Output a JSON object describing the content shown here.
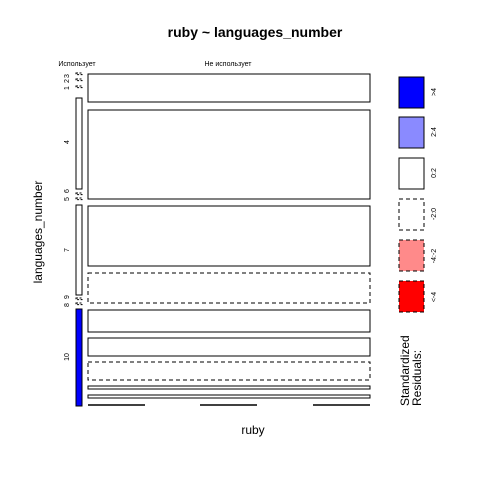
{
  "chart_data": {
    "type": "mosaic",
    "title": "ruby ~ languages_number",
    "xlabel": "ruby",
    "ylabel": "languages_number",
    "column_labels": [
      "Использует",
      "Не использует"
    ],
    "row_labels": [
      "1",
      "2",
      "3",
      "4",
      "5",
      "6",
      "7",
      "8",
      "9",
      "10"
    ],
    "legend": {
      "title_lines": [
        "Standardized",
        "Residuals:"
      ],
      "items": [
        {
          "label": ">4",
          "fill": "#0000ff",
          "dashed": false
        },
        {
          "label": "2:4",
          "fill": "#8a8aff",
          "dashed": false
        },
        {
          "label": "0:2",
          "fill": "#ffffff",
          "dashed": false
        },
        {
          "label": "-2:0",
          "fill": "#ffffff",
          "dashed": true
        },
        {
          "label": "-4:-2",
          "fill": "#ff8a8a",
          "dashed": true
        },
        {
          "label": "<-4",
          "fill": "#ff0000",
          "dashed": true
        }
      ]
    }
  }
}
